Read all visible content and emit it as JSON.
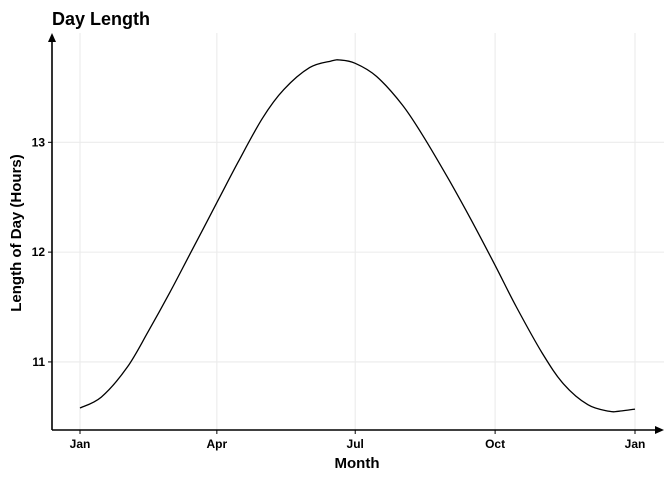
{
  "chart_data": {
    "type": "line",
    "title": "Day Length",
    "xlabel": "Month",
    "ylabel": "Length of Day (Hours)",
    "x_ticks": [
      {
        "label": "Jan",
        "day": 1
      },
      {
        "label": "Apr",
        "day": 91
      },
      {
        "label": "Jul",
        "day": 182
      },
      {
        "label": "Oct",
        "day": 274
      },
      {
        "label": "Jan",
        "day": 366
      }
    ],
    "y_ticks": [
      11,
      12,
      13
    ],
    "xlim": [
      1,
      366
    ],
    "ylim": [
      10.38,
      13.95
    ],
    "grid": true,
    "series": [
      {
        "color": "#000000",
        "x": [
          1,
          15,
          32,
          46,
          60,
          74,
          91,
          105,
          121,
          135,
          152,
          166,
          172,
          182,
          196,
          213,
          227,
          244,
          258,
          274,
          288,
          305,
          319,
          335,
          349,
          355,
          366
        ],
        "y": [
          10.58,
          10.68,
          10.95,
          11.28,
          11.63,
          12.0,
          12.45,
          12.82,
          13.22,
          13.48,
          13.68,
          13.74,
          13.75,
          13.72,
          13.6,
          13.34,
          13.05,
          12.65,
          12.3,
          11.88,
          11.5,
          11.08,
          10.8,
          10.61,
          10.55,
          10.55,
          10.57
        ]
      }
    ]
  }
}
